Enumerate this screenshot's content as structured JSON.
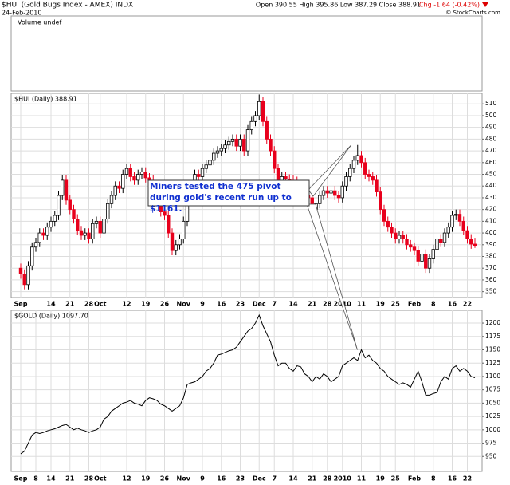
{
  "header": {
    "title": "$HUI (Gold Bugs Index - AMEX) INDX",
    "date": "24-Feb-2010",
    "quote": "Open 390.55 High 395.86 Low 387.29 Close 388.91",
    "change": "Chg -1.64 (-0.42%)",
    "credit": "© StockCharts.com",
    "volume_label": "Volume undef"
  },
  "chart_data": [
    {
      "type": "candlestick",
      "label": "$HUI (Daily) 388.91",
      "annotation": "Miners tested the 475 pivot during gold's recent run up to $1161.",
      "up_color": "#ffffff",
      "down_color": "#e8001c",
      "grid": true,
      "ylim": [
        345,
        519
      ],
      "yticks": [
        350,
        360,
        370,
        380,
        390,
        400,
        410,
        420,
        430,
        440,
        450,
        460,
        470,
        480,
        490,
        500,
        510
      ],
      "categories": [
        "Sep",
        null,
        null,
        null,
        null,
        null,
        null,
        null,
        "14",
        null,
        null,
        null,
        null,
        "21",
        null,
        null,
        null,
        null,
        "28",
        null,
        null,
        "Oct",
        null,
        null,
        null,
        null,
        null,
        null,
        "12",
        null,
        null,
        null,
        null,
        "19",
        null,
        null,
        null,
        null,
        "26",
        null,
        null,
        null,
        null,
        "Nov",
        null,
        null,
        null,
        null,
        "9",
        null,
        null,
        null,
        null,
        "16",
        null,
        null,
        null,
        null,
        "23",
        null,
        null,
        null,
        null,
        "Dec",
        null,
        null,
        null,
        "7",
        null,
        null,
        null,
        null,
        "14",
        null,
        null,
        null,
        null,
        "21",
        null,
        null,
        null,
        "28",
        null,
        null,
        null,
        "2010",
        null,
        null,
        null,
        null,
        "11",
        null,
        null,
        null,
        null,
        "19",
        null,
        null,
        null,
        "25",
        null,
        null,
        null,
        null,
        "Feb",
        null,
        null,
        null,
        null,
        "8",
        null,
        null,
        null,
        null,
        "16",
        null,
        null,
        null,
        "22",
        null,
        null
      ],
      "open": [
        370,
        365,
        356,
        372,
        388,
        392,
        400,
        398,
        405,
        410,
        415,
        432,
        445,
        428,
        420,
        412,
        402,
        398,
        400,
        395,
        408,
        410,
        400,
        412,
        425,
        432,
        440,
        438,
        450,
        455,
        448,
        445,
        450,
        452,
        447,
        445,
        440,
        430,
        418,
        415,
        400,
        385,
        390,
        395,
        410,
        430,
        440,
        450,
        448,
        455,
        458,
        462,
        468,
        470,
        472,
        475,
        478,
        480,
        474,
        480,
        470,
        488,
        495,
        500,
        512,
        495,
        480,
        470,
        455,
        440,
        448,
        446,
        445,
        444,
        440,
        438,
        432,
        430,
        420,
        425,
        432,
        436,
        434,
        436,
        432,
        430,
        440,
        448,
        455,
        462,
        466,
        460,
        450,
        448,
        445,
        435,
        420,
        410,
        405,
        400,
        395,
        398,
        395,
        390,
        388,
        385,
        376,
        382,
        370,
        378,
        386,
        395,
        392,
        400,
        405,
        415,
        416,
        410,
        402,
        395,
        390.55
      ],
      "high": [
        374,
        369,
        376,
        392,
        396,
        404,
        404,
        409,
        414,
        419,
        436,
        449,
        449,
        432,
        424,
        416,
        406,
        404,
        404,
        412,
        414,
        414,
        416,
        429,
        436,
        444,
        444,
        454,
        459,
        459,
        452,
        454,
        456,
        456,
        451,
        449,
        444,
        434,
        422,
        419,
        404,
        394,
        399,
        414,
        434,
        444,
        454,
        454,
        459,
        462,
        466,
        472,
        474,
        476,
        479,
        482,
        484,
        484,
        484,
        484,
        492,
        499,
        504,
        518,
        516,
        499,
        484,
        474,
        459,
        452,
        452,
        450,
        449,
        448,
        444,
        442,
        436,
        434,
        429,
        436,
        440,
        440,
        440,
        440,
        436,
        444,
        452,
        459,
        466,
        475,
        470,
        464,
        454,
        452,
        449,
        439,
        424,
        414,
        409,
        404,
        402,
        402,
        399,
        394,
        392,
        389,
        386,
        386,
        382,
        390,
        399,
        399,
        404,
        409,
        419,
        420,
        420,
        414,
        406,
        399,
        395.86
      ],
      "low": [
        361,
        352,
        352,
        368,
        384,
        388,
        394,
        394,
        401,
        406,
        411,
        428,
        424,
        416,
        408,
        398,
        394,
        394,
        391,
        391,
        404,
        396,
        396,
        408,
        421,
        428,
        434,
        434,
        446,
        444,
        441,
        441,
        446,
        443,
        441,
        436,
        426,
        414,
        411,
        396,
        381,
        381,
        386,
        391,
        406,
        426,
        436,
        444,
        444,
        451,
        454,
        458,
        464,
        466,
        468,
        471,
        474,
        470,
        470,
        466,
        466,
        484,
        491,
        496,
        491,
        476,
        466,
        451,
        436,
        436,
        442,
        441,
        440,
        436,
        434,
        428,
        426,
        416,
        416,
        421,
        428,
        430,
        430,
        428,
        426,
        426,
        436,
        444,
        451,
        458,
        456,
        446,
        444,
        441,
        431,
        416,
        406,
        401,
        396,
        391,
        391,
        391,
        386,
        384,
        381,
        372,
        372,
        366,
        366,
        374,
        382,
        388,
        388,
        396,
        401,
        411,
        406,
        398,
        391,
        386.55,
        387.29
      ],
      "close": [
        365,
        356,
        372,
        388,
        392,
        400,
        398,
        405,
        410,
        415,
        432,
        445,
        428,
        420,
        412,
        402,
        398,
        400,
        395,
        408,
        410,
        400,
        412,
        425,
        432,
        440,
        438,
        450,
        455,
        448,
        445,
        450,
        452,
        447,
        445,
        440,
        430,
        418,
        415,
        400,
        385,
        390,
        395,
        410,
        430,
        440,
        450,
        448,
        455,
        458,
        462,
        468,
        470,
        472,
        475,
        478,
        480,
        474,
        480,
        470,
        488,
        495,
        500,
        512,
        495,
        480,
        470,
        455,
        440,
        448,
        446,
        445,
        444,
        440,
        438,
        432,
        430,
        420,
        425,
        432,
        436,
        434,
        436,
        432,
        430,
        440,
        448,
        455,
        462,
        466,
        460,
        450,
        448,
        445,
        435,
        420,
        410,
        405,
        400,
        395,
        398,
        395,
        390,
        388,
        385,
        376,
        382,
        370,
        378,
        386,
        395,
        392,
        400,
        405,
        415,
        416,
        410,
        402,
        395,
        390.55,
        388.91
      ]
    },
    {
      "type": "line",
      "label": "$GOLD (Daily) 1097.70",
      "color": "#000000",
      "grid": true,
      "ylim": [
        922,
        1224
      ],
      "yticks": [
        950,
        975,
        1000,
        1025,
        1050,
        1075,
        1100,
        1125,
        1150,
        1175,
        1200
      ],
      "categories": [
        "Sep",
        null,
        null,
        null,
        "8",
        null,
        null,
        null,
        "14",
        null,
        null,
        null,
        null,
        "21",
        null,
        null,
        null,
        null,
        "28",
        null,
        null,
        "Oct",
        null,
        null,
        null,
        null,
        null,
        null,
        "12",
        null,
        null,
        null,
        null,
        "19",
        null,
        null,
        null,
        null,
        "26",
        null,
        null,
        null,
        null,
        "Nov",
        null,
        null,
        null,
        null,
        "9",
        null,
        null,
        null,
        null,
        "16",
        null,
        null,
        null,
        null,
        "23",
        null,
        null,
        null,
        null,
        "Dec",
        null,
        null,
        null,
        "7",
        null,
        null,
        null,
        null,
        "14",
        null,
        null,
        null,
        null,
        "21",
        null,
        null,
        null,
        "28",
        null,
        null,
        null,
        "2010",
        null,
        null,
        null,
        null,
        "11",
        null,
        null,
        null,
        null,
        "19",
        null,
        null,
        null,
        "25",
        null,
        null,
        null,
        null,
        "Feb",
        null,
        null,
        null,
        null,
        "8",
        null,
        null,
        null,
        null,
        "16",
        null,
        null,
        null,
        "22",
        null,
        null
      ],
      "values": [
        955,
        960,
        975,
        990,
        995,
        993,
        995,
        998,
        1000,
        1002,
        1005,
        1008,
        1010,
        1005,
        1000,
        1003,
        1000,
        998,
        995,
        998,
        1000,
        1005,
        1020,
        1025,
        1035,
        1040,
        1045,
        1050,
        1052,
        1055,
        1050,
        1048,
        1045,
        1055,
        1060,
        1058,
        1055,
        1048,
        1045,
        1040,
        1035,
        1040,
        1045,
        1060,
        1085,
        1088,
        1090,
        1095,
        1100,
        1110,
        1115,
        1125,
        1140,
        1142,
        1145,
        1148,
        1150,
        1155,
        1165,
        1175,
        1185,
        1190,
        1200,
        1215,
        1195,
        1180,
        1165,
        1140,
        1120,
        1125,
        1125,
        1115,
        1110,
        1120,
        1118,
        1105,
        1100,
        1090,
        1100,
        1095,
        1105,
        1100,
        1090,
        1095,
        1100,
        1120,
        1125,
        1130,
        1135,
        1130,
        1150,
        1135,
        1140,
        1130,
        1125,
        1115,
        1110,
        1100,
        1095,
        1090,
        1085,
        1088,
        1085,
        1080,
        1095,
        1110,
        1090,
        1065,
        1065,
        1068,
        1070,
        1090,
        1100,
        1095,
        1115,
        1120,
        1110,
        1115,
        1110,
        1100,
        1097.7
      ]
    }
  ]
}
